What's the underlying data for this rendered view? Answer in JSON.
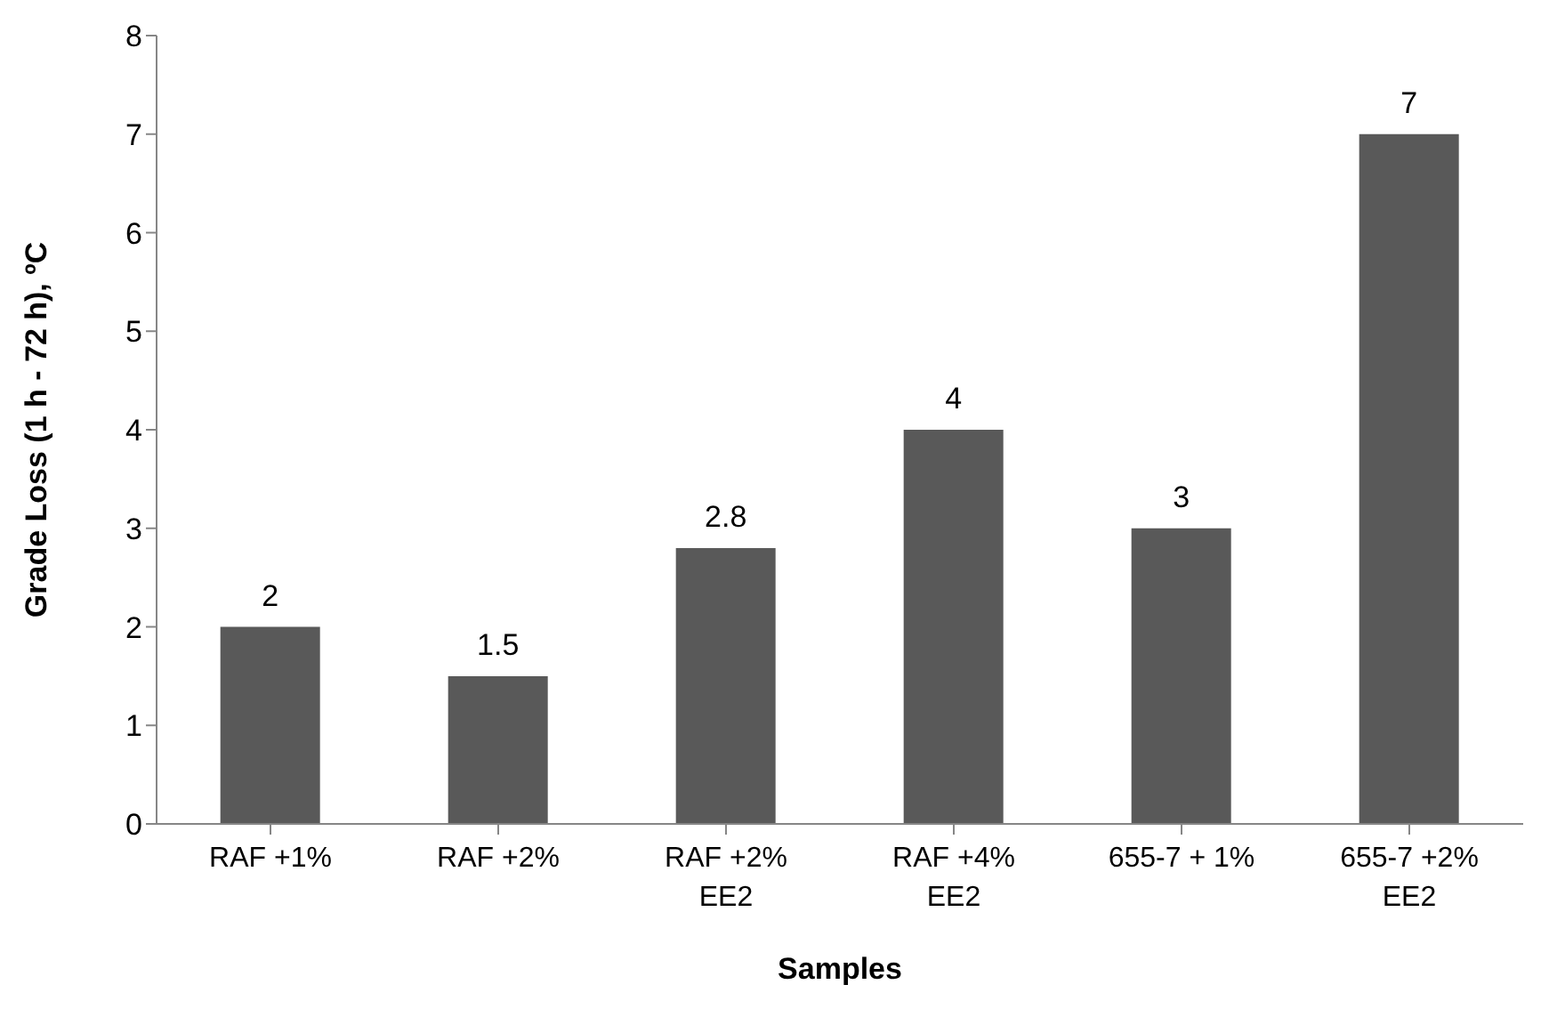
{
  "chart_data": {
    "type": "bar",
    "xlabel": "Samples",
    "ylabel": "Grade Loss (1 h - 72 h), ºC",
    "categories": [
      "RAF +1%",
      "RAF +2%",
      "RAF +2% EE2",
      "RAF +4% EE2",
      "655-7 + 1%",
      "655-7 +2% EE2"
    ],
    "values": [
      2,
      1.5,
      2.8,
      4,
      3,
      7
    ],
    "color": "#595959",
    "ylim": [
      0,
      8
    ],
    "yticks": [
      0,
      1,
      2,
      3,
      4,
      5,
      6,
      7,
      8
    ],
    "grid": false,
    "data_labels": true
  }
}
